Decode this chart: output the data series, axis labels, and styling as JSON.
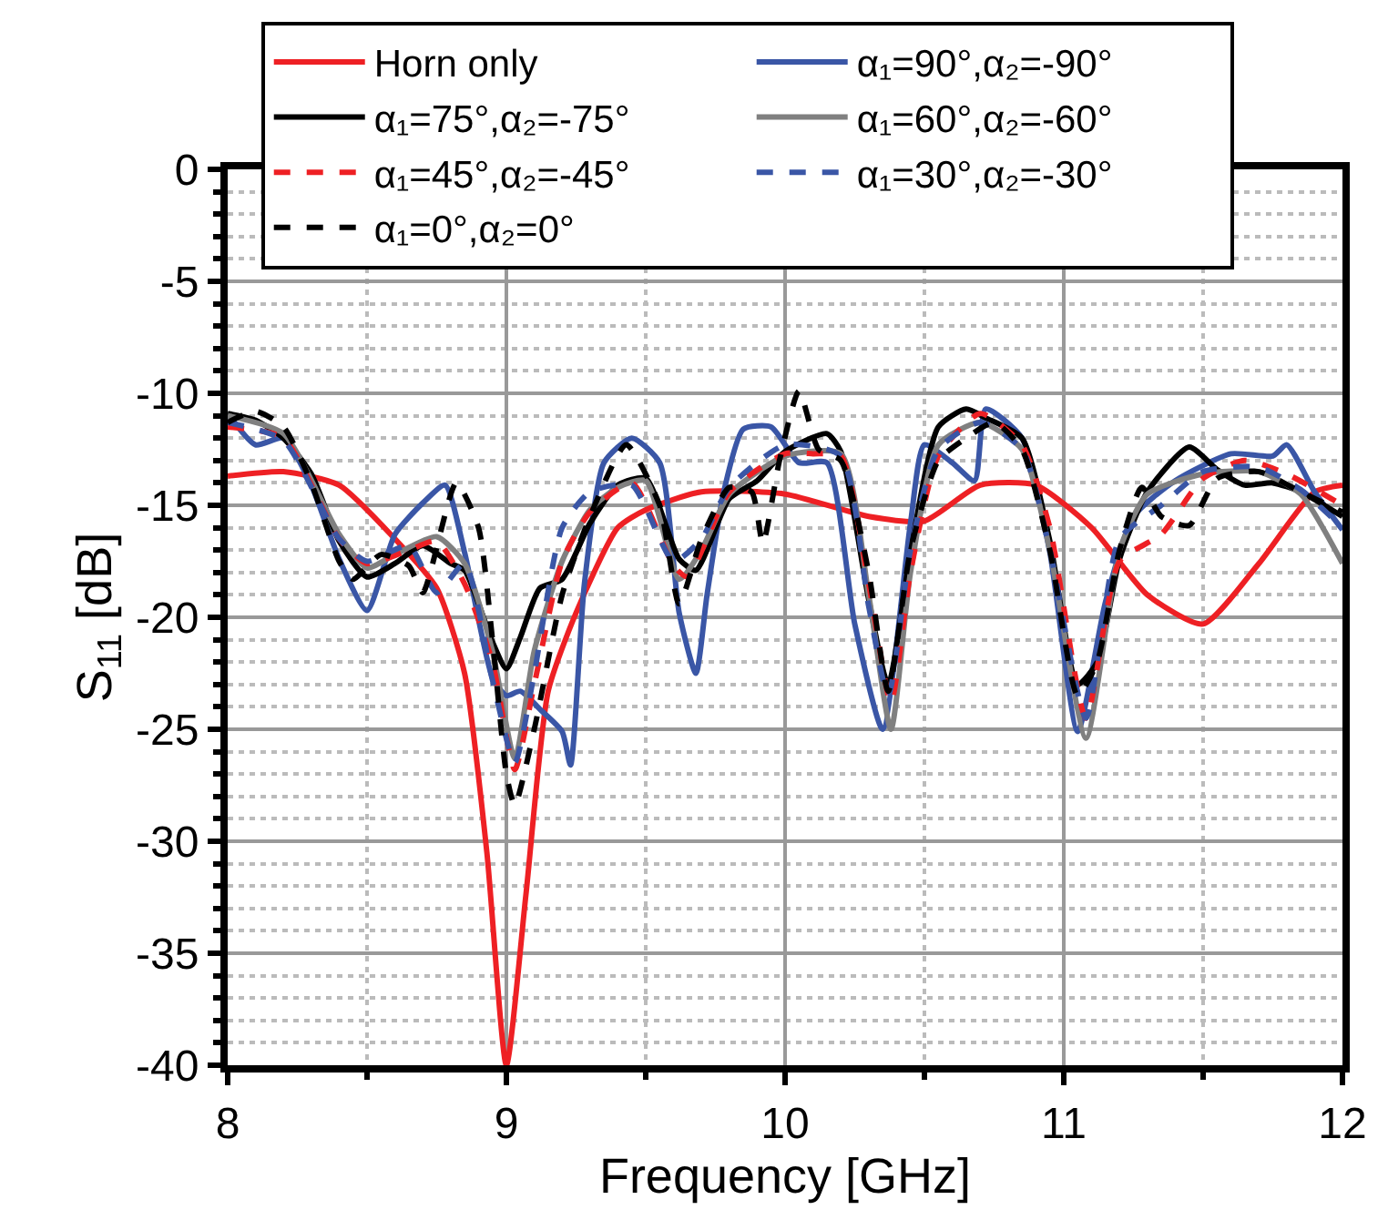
{
  "chart_data": {
    "type": "line",
    "xlabel": "Frequency [GHz]",
    "ylabel": "S$_{11}$ [dB]",
    "xlim": [
      8,
      12
    ],
    "xticks": [
      8,
      9,
      10,
      11,
      12
    ],
    "ylim": [
      -40,
      0
    ],
    "yticks": [
      0,
      -5,
      -10,
      -15,
      -20,
      -25,
      -30,
      -35,
      -40
    ],
    "grid": true,
    "legend": "top",
    "series": [
      {
        "name": "Horn only",
        "color": "#ee2024",
        "line_style": "solid",
        "x": [
          8.0,
          8.2,
          8.4,
          8.6,
          8.75,
          8.85,
          8.93,
          9.0,
          9.07,
          9.15,
          9.25,
          9.4,
          9.5,
          9.7,
          10.0,
          10.3,
          10.5,
          10.7,
          10.9,
          11.1,
          11.3,
          11.5,
          11.7,
          11.9,
          12.0
        ],
        "values": [
          -13.7,
          -13.5,
          -14.1,
          -16.5,
          -18.7,
          -22.5,
          -30.5,
          -40,
          -32.4,
          -23.3,
          -19.8,
          -16,
          -15.2,
          -14.4,
          -14.5,
          -15.5,
          -15.7,
          -14.1,
          -14.1,
          -16,
          -19,
          -20.3,
          -17.6,
          -14.4,
          -14.1
        ]
      },
      {
        "name": "α₁=90°,α₂=-90°",
        "color": "#3a56a6",
        "line_style": "solid",
        "x": [
          8.0,
          8.1,
          8.2,
          8.3,
          8.4,
          8.5,
          8.6,
          8.7,
          8.78,
          8.85,
          8.95,
          9.0,
          9.05,
          9.12,
          9.2,
          9.23,
          9.28,
          9.35,
          9.45,
          9.55,
          9.62,
          9.68,
          9.72,
          9.78,
          9.85,
          9.95,
          10.05,
          10.15,
          10.25,
          10.35,
          10.45,
          10.5,
          10.6,
          10.68,
          10.72,
          10.85,
          10.95,
          11.05,
          11.15,
          11.25,
          11.4,
          11.6,
          11.75,
          11.8,
          11.9,
          12.0
        ],
        "values": [
          -10.9,
          -12.3,
          -12.0,
          -14.1,
          -17.4,
          -19.7,
          -16.3,
          -14.9,
          -14.1,
          -17.1,
          -22.7,
          -23.5,
          -23.3,
          -24.1,
          -25.1,
          -26.6,
          -18.5,
          -13.1,
          -12.0,
          -13.1,
          -19.8,
          -22.5,
          -19,
          -14.4,
          -11.6,
          -11.5,
          -13.1,
          -13.1,
          -20.3,
          -25,
          -15.8,
          -12.3,
          -13.1,
          -13.9,
          -10.7,
          -12,
          -17.1,
          -25.1,
          -19.3,
          -15.5,
          -13.9,
          -12.7,
          -12.8,
          -12.3,
          -14.4,
          -16.1
        ]
      },
      {
        "name": "α₁=75°,α₂=-75°",
        "color": "#000000",
        "line_style": "solid",
        "x": [
          8.0,
          8.1,
          8.2,
          8.3,
          8.4,
          8.5,
          8.6,
          8.7,
          8.8,
          8.85,
          8.95,
          9.0,
          9.05,
          9.12,
          9.2,
          9.3,
          9.4,
          9.5,
          9.62,
          9.68,
          9.8,
          9.9,
          10.0,
          10.15,
          10.2,
          10.3,
          10.37,
          10.45,
          10.55,
          10.65,
          10.72,
          10.85,
          10.95,
          11.05,
          11.12,
          11.2,
          11.3,
          11.45,
          11.55,
          11.65,
          11.75,
          11.85,
          12.0
        ],
        "values": [
          -10.9,
          -11.2,
          -12.0,
          -13.6,
          -16.6,
          -18.2,
          -17.6,
          -16.8,
          -17.6,
          -17.9,
          -21.1,
          -22.3,
          -20.9,
          -18.7,
          -18.3,
          -15.8,
          -14.1,
          -13.8,
          -17.4,
          -17.9,
          -14.7,
          -13.9,
          -12.6,
          -11.8,
          -12.6,
          -19.2,
          -23,
          -17.1,
          -11.5,
          -10.7,
          -11.1,
          -12,
          -16.6,
          -23,
          -22,
          -17.4,
          -14.4,
          -12.4,
          -13.4,
          -14.1,
          -14,
          -14.4,
          -15.5
        ]
      },
      {
        "name": "α₁=60°,α₂=-60°",
        "color": "#808080",
        "line_style": "solid",
        "x": [
          8.0,
          8.2,
          8.4,
          8.5,
          8.6,
          8.75,
          8.85,
          8.95,
          9.03,
          9.1,
          9.2,
          9.3,
          9.4,
          9.5,
          9.62,
          9.7,
          9.8,
          10.0,
          10.2,
          10.3,
          10.38,
          10.45,
          10.55,
          10.7,
          10.85,
          10.95,
          11.08,
          11.2,
          11.3,
          11.5,
          11.7,
          11.85,
          12.0
        ],
        "values": [
          -11,
          -11.8,
          -16.3,
          -17.8,
          -17.2,
          -16.4,
          -17.6,
          -21.5,
          -26.3,
          -21.5,
          -17.5,
          -15.2,
          -14.2,
          -13.9,
          -18.3,
          -17,
          -14.5,
          -12.8,
          -12.7,
          -19,
          -25,
          -18,
          -12.3,
          -11.3,
          -12.5,
          -17,
          -25.4,
          -17,
          -14.5,
          -13.6,
          -13.5,
          -14.5,
          -17.6
        ]
      },
      {
        "name": "α₁=45°,α₂=-45°",
        "color": "#ee2024",
        "line_style": "dashed",
        "x": [
          8.0,
          8.2,
          8.4,
          8.5,
          8.65,
          8.75,
          8.85,
          8.95,
          9.03,
          9.1,
          9.2,
          9.3,
          9.45,
          9.6,
          9.65,
          9.8,
          10.0,
          10.1,
          10.2,
          10.3,
          10.38,
          10.45,
          10.55,
          10.7,
          10.85,
          10.95,
          11.08,
          11.2,
          11.35,
          11.5,
          11.65,
          11.8,
          12.0
        ],
        "values": [
          -11.5,
          -12,
          -16.5,
          -17.6,
          -17,
          -16.6,
          -18.5,
          -22,
          -26.8,
          -23,
          -17.5,
          -15.3,
          -14,
          -17.7,
          -18.2,
          -14.4,
          -12.7,
          -12.7,
          -12.8,
          -18.5,
          -23.8,
          -18,
          -12.8,
          -10.9,
          -12.3,
          -16,
          -24.5,
          -17.5,
          -16.3,
          -13.8,
          -13,
          -13.6,
          -15
        ]
      },
      {
        "name": "α₁=30°,α₂=-30°",
        "color": "#3a56a6",
        "line_style": "dashed",
        "x": [
          8.0,
          8.2,
          8.4,
          8.5,
          8.65,
          8.75,
          8.85,
          8.95,
          9.03,
          9.1,
          9.2,
          9.3,
          9.45,
          9.6,
          9.7,
          9.8,
          10.0,
          10.2,
          10.3,
          10.37,
          10.45,
          10.55,
          10.7,
          10.85,
          10.95,
          11.08,
          11.2,
          11.35,
          11.5,
          11.7,
          11.85,
          12.0
        ],
        "values": [
          -11.3,
          -12.1,
          -16.5,
          -17.5,
          -16.8,
          -18.9,
          -17.6,
          -22.8,
          -26.5,
          -22.5,
          -16,
          -14.4,
          -14.1,
          -17.5,
          -16.5,
          -14.2,
          -12.3,
          -12.8,
          -19.5,
          -23.5,
          -17,
          -12.5,
          -11.3,
          -12.5,
          -17,
          -24.5,
          -16.5,
          -15,
          -13.5,
          -13.3,
          -14.3,
          -16
        ]
      },
      {
        "name": "α₁=0°,α₂=0°",
        "color": "#000000",
        "line_style": "dashed",
        "x": [
          8.0,
          8.1,
          8.2,
          8.3,
          8.4,
          8.45,
          8.55,
          8.65,
          8.7,
          8.82,
          8.9,
          8.95,
          9.0,
          9.03,
          9.1,
          9.2,
          9.3,
          9.43,
          9.55,
          9.62,
          9.7,
          9.8,
          9.88,
          9.92,
          9.98,
          10.05,
          10.12,
          10.2,
          10.3,
          10.37,
          10.45,
          10.55,
          10.65,
          10.75,
          10.85,
          10.95,
          11.05,
          11.12,
          11.2,
          11.28,
          11.35,
          11.45,
          11.55,
          11.7,
          11.85,
          12.0
        ],
        "values": [
          -11.3,
          -10.8,
          -11.5,
          -14,
          -17.5,
          -18.3,
          -17.2,
          -17.7,
          -18.9,
          -14,
          -16,
          -21,
          -27,
          -28.4,
          -25,
          -19,
          -15.5,
          -12.3,
          -15,
          -19.4,
          -16.5,
          -14.2,
          -14.4,
          -16.7,
          -13,
          -9.9,
          -12.5,
          -13,
          -18,
          -23.3,
          -17,
          -13,
          -12,
          -11.3,
          -12.5,
          -17,
          -23.5,
          -22,
          -17,
          -14.2,
          -15.5,
          -15.9,
          -13.8,
          -13.5,
          -14.4,
          -15.3
        ]
      }
    ]
  }
}
